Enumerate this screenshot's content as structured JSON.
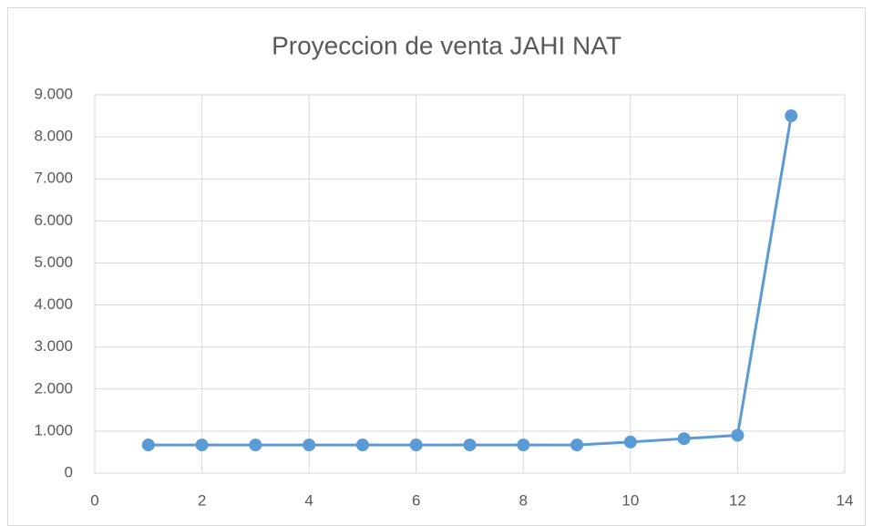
{
  "chart_data": {
    "type": "line",
    "title": "Proyeccion de venta JAHI NAT",
    "x": [
      1,
      2,
      3,
      4,
      5,
      6,
      7,
      8,
      9,
      10,
      11,
      12,
      13
    ],
    "series": [
      {
        "color": "#5b9bd5",
        "values": [
          670,
          670,
          670,
          670,
          670,
          670,
          670,
          670,
          670,
          740,
          820,
          900,
          8500
        ]
      }
    ],
    "xlim": [
      0,
      14
    ],
    "xticks": [
      0,
      2,
      4,
      6,
      8,
      10,
      12,
      14
    ],
    "ylim": [
      0,
      9000
    ],
    "yticks": [
      0,
      {
        "value": 1000,
        "label": "1.000"
      },
      {
        "value": 2000,
        "label": "2.000"
      },
      {
        "value": 3000,
        "label": "3.000"
      },
      {
        "value": 4000,
        "label": "4.000"
      },
      {
        "value": 5000,
        "label": "5.000"
      },
      {
        "value": 6000,
        "label": "6.000"
      },
      {
        "value": 7000,
        "label": "7.000"
      },
      {
        "value": 8000,
        "label": "8.000"
      },
      {
        "value": 9000,
        "label": "9.000"
      }
    ],
    "grid": true
  }
}
